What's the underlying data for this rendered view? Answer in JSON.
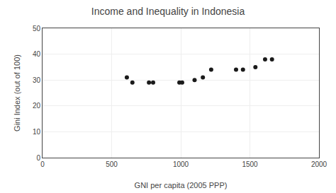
{
  "chart_data": {
    "type": "scatter",
    "title": "Income and Inequality in Indonesia",
    "xlabel": "GNI per capita (2005 PPP)",
    "ylabel": "Gini Index (out of 100)",
    "x": [
      610,
      650,
      770,
      800,
      990,
      1010,
      1100,
      1160,
      1220,
      1400,
      1450,
      1540,
      1610,
      1660
    ],
    "values": [
      31,
      29,
      29,
      29,
      29,
      29,
      30,
      31,
      34,
      34,
      34,
      35,
      38,
      38
    ],
    "xlim": [
      0,
      2000
    ],
    "ylim": [
      0,
      50
    ],
    "xticks": [
      0,
      500,
      1000,
      1500,
      2000
    ],
    "yticks": [
      0,
      10,
      20,
      30,
      40,
      50
    ],
    "color": "#1a1a1a",
    "grid": true
  }
}
